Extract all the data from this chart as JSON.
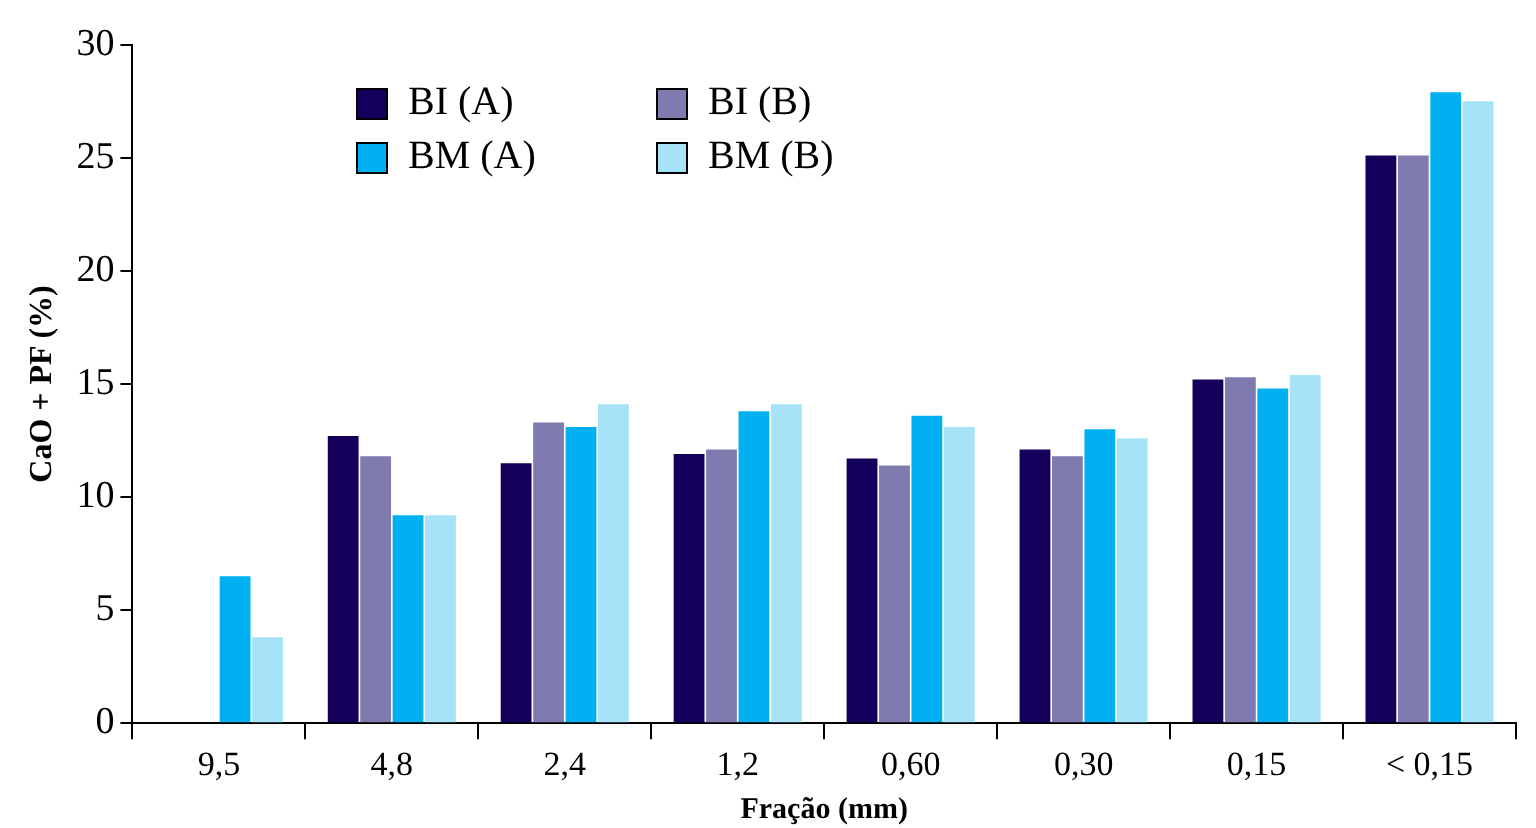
{
  "chart_data": {
    "type": "bar",
    "xlabel": "Fração (mm)",
    "ylabel": "CaO + PF (%)",
    "categories": [
      "9,5",
      "4,8",
      "2,4",
      "1,2",
      "0,60",
      "0,30",
      "0,15",
      "< 0,15"
    ],
    "series": [
      {
        "name": "BI (A)",
        "color": "#14005a",
        "values": [
          null,
          12.7,
          11.5,
          11.9,
          11.7,
          12.1,
          15.2,
          25.1
        ]
      },
      {
        "name": "BI (B)",
        "color": "#7f7aaf",
        "values": [
          null,
          11.8,
          13.3,
          12.1,
          11.4,
          11.8,
          15.3,
          25.1
        ]
      },
      {
        "name": "BM (A)",
        "color": "#00b0f0",
        "values": [
          6.5,
          9.2,
          13.1,
          13.8,
          13.6,
          13.0,
          14.8,
          27.9
        ]
      },
      {
        "name": "BM (B)",
        "color": "#a6e3f8",
        "values": [
          3.8,
          9.2,
          14.1,
          14.1,
          13.1,
          12.6,
          15.4,
          27.5
        ]
      }
    ],
    "ylim": [
      0,
      30
    ],
    "yticks": [
      0,
      5,
      10,
      15,
      20,
      25,
      30
    ],
    "grid": false,
    "legend": "top left"
  }
}
